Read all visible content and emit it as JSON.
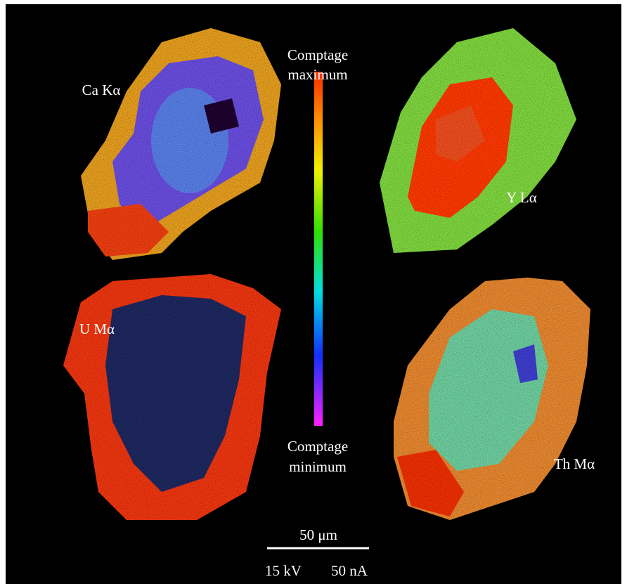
{
  "maps": [
    {
      "label": "Ca Kα"
    },
    {
      "label": "Y Lα"
    },
    {
      "label": "U Mα"
    },
    {
      "label": "Th Mα"
    }
  ],
  "colorbar": {
    "top": [
      "Comptage",
      "maximum"
    ],
    "bottom": [
      "Comptage",
      "minimum"
    ]
  },
  "scale_bar": {
    "label": "50 μm"
  },
  "conditions": [
    "15 kV",
    "50 nA"
  ]
}
